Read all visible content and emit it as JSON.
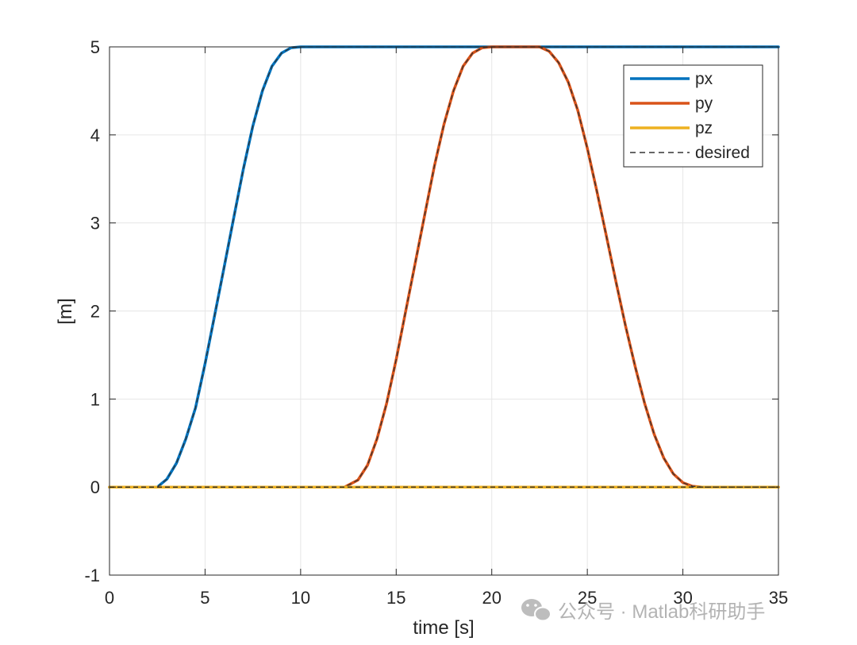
{
  "chart_data": {
    "type": "line",
    "title": "",
    "xlabel": "time [s]",
    "ylabel": "[m]",
    "xlim": [
      0,
      35
    ],
    "ylim": [
      -1,
      5
    ],
    "xticks": [
      0,
      5,
      10,
      15,
      20,
      25,
      30,
      35
    ],
    "yticks": [
      -1,
      0,
      1,
      2,
      3,
      4,
      5
    ],
    "xtick_labels": [
      "0",
      "5",
      "10",
      "15",
      "20",
      "25",
      "30",
      "35"
    ],
    "ytick_labels": [
      "-1",
      "0",
      "1",
      "2",
      "3",
      "4",
      "5"
    ],
    "grid": true,
    "legend_position": "top-right",
    "series": [
      {
        "name": "px",
        "color": "#0072BD",
        "style": "solid",
        "x": [
          0,
          2.5,
          3.0,
          3.5,
          4.0,
          4.5,
          5.0,
          5.5,
          6.0,
          6.5,
          7.0,
          7.5,
          8.0,
          8.5,
          9.0,
          9.5,
          10.0,
          20.0,
          35.0
        ],
        "y": [
          0,
          0,
          0.09,
          0.27,
          0.55,
          0.9,
          1.4,
          1.95,
          2.5,
          3.06,
          3.61,
          4.1,
          4.5,
          4.78,
          4.93,
          4.99,
          5.0,
          5.0,
          5.0
        ]
      },
      {
        "name": "py",
        "color": "#D95319",
        "style": "solid",
        "x": [
          0,
          12.3,
          13.0,
          13.5,
          14.0,
          14.5,
          15.0,
          15.5,
          16.0,
          16.5,
          17.0,
          17.5,
          18.0,
          18.5,
          19.0,
          19.5,
          20.0,
          22.5,
          23.0,
          23.5,
          24.0,
          24.5,
          25.0,
          25.5,
          26.0,
          26.5,
          27.0,
          27.5,
          28.0,
          28.5,
          29.0,
          29.5,
          30.0,
          30.5,
          31.0,
          31.5,
          35.0
        ],
        "y": [
          0,
          0,
          0.08,
          0.25,
          0.55,
          0.95,
          1.45,
          2.0,
          2.55,
          3.1,
          3.65,
          4.12,
          4.5,
          4.78,
          4.93,
          4.99,
          5.0,
          5.0,
          4.95,
          4.82,
          4.6,
          4.28,
          3.85,
          3.36,
          2.85,
          2.33,
          1.83,
          1.37,
          0.95,
          0.6,
          0.33,
          0.15,
          0.05,
          0.01,
          0.0,
          0.0,
          0.0
        ]
      },
      {
        "name": "pz",
        "color": "#EDB120",
        "style": "solid",
        "x": [
          0,
          35
        ],
        "y": [
          0,
          0
        ]
      }
    ],
    "desired_label": "desired",
    "desired_color": "#333333"
  },
  "watermark": {
    "icon": "wechat-icon",
    "text": "公众号 · Matlab科研助手"
  }
}
